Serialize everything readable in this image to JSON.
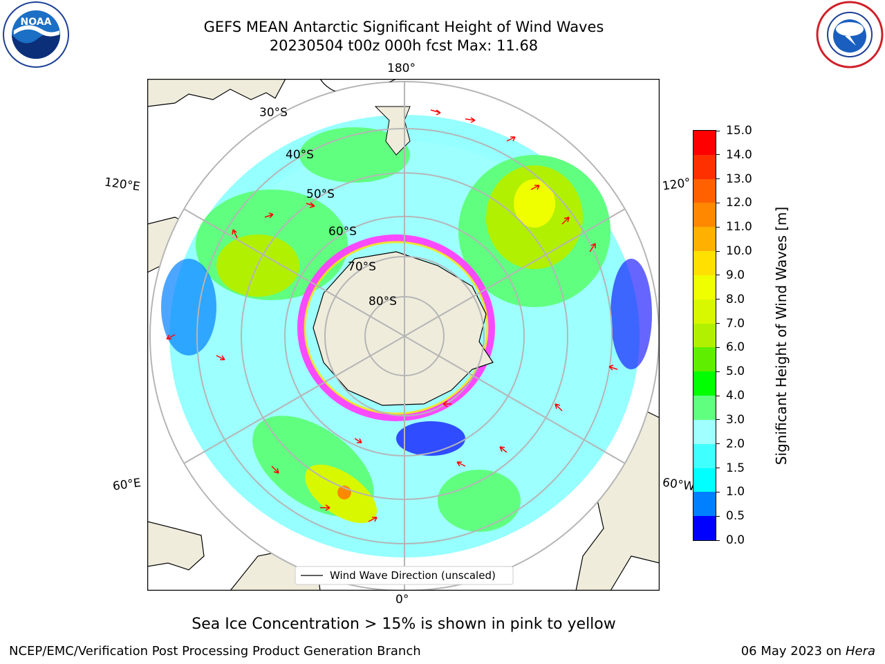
{
  "title": {
    "line1": "GEFS MEAN Antarctic Significant Height of Wind Waves",
    "line2": "20230504 t00z 000h fcst   Max: 11.68"
  },
  "map": {
    "projection": "south-polar-stereographic",
    "longitude_labels": [
      "180°",
      "120°E",
      "120°",
      "60°E",
      "60°W",
      "0°"
    ],
    "latitude_labels": [
      "30°S",
      "40°S",
      "50°S",
      "60°S",
      "70°S",
      "80°S"
    ],
    "legend": "Wind Wave Direction (unscaled)",
    "colors": {
      "land": "#efecdc",
      "coast": "#000000",
      "grid": "#b5b5b5",
      "arrow": "#ff0000",
      "sea_ice": "#ff40ff"
    }
  },
  "colorbar": {
    "label": "Significant Height of Wind Waves [m]",
    "ticks": [
      "0.0",
      "0.5",
      "1.0",
      "1.5",
      "2.0",
      "3.0",
      "4.0",
      "5.0",
      "6.0",
      "7.0",
      "8.0",
      "9.0",
      "10.0",
      "11.0",
      "12.0",
      "13.0",
      "14.0",
      "15.0"
    ],
    "colors": [
      "#0000ff",
      "#0080ff",
      "#00ffff",
      "#40ffff",
      "#a0ffff",
      "#60ff80",
      "#00ff00",
      "#60ee00",
      "#b0f000",
      "#d8f800",
      "#f0ff00",
      "#ffe000",
      "#ffb000",
      "#ff8800",
      "#ff6000",
      "#ff3000",
      "#ff0000"
    ]
  },
  "caption": "Sea Ice Concentration > 15% is shown in pink to yellow",
  "footer": {
    "left": "NCEP/EMC/Verification Post Processing Product Generation Branch",
    "right_date": "06 May 2023 on",
    "right_host": "Hera"
  }
}
